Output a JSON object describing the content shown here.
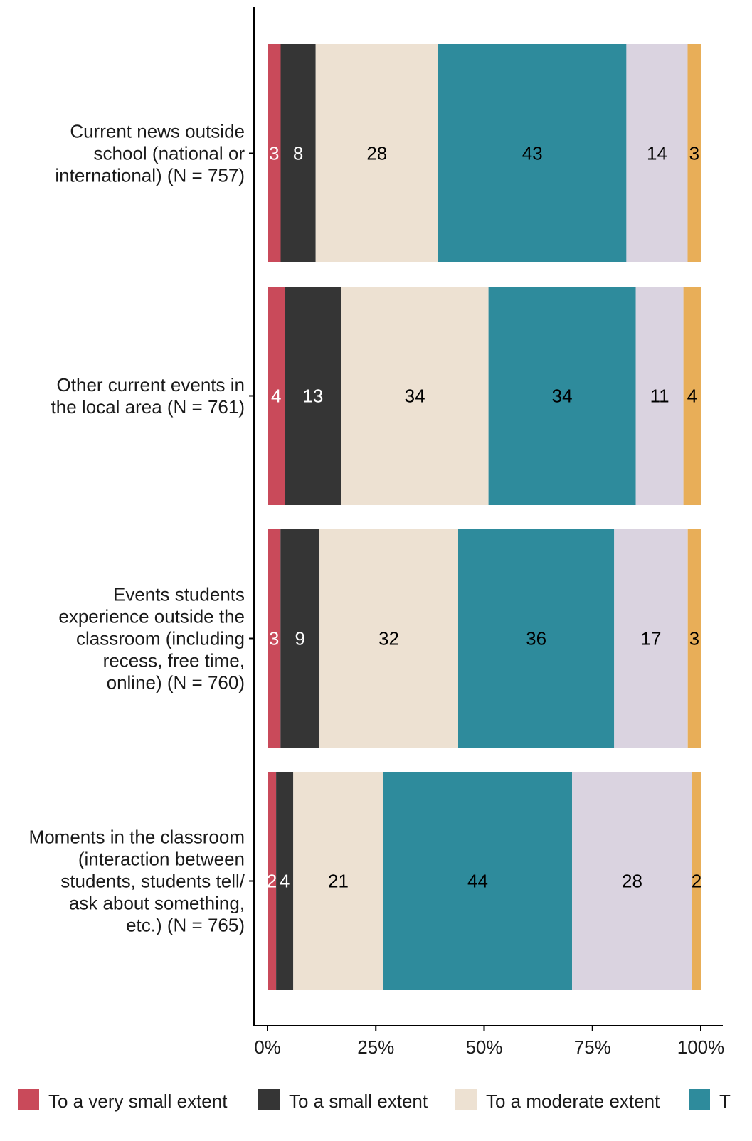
{
  "chart_data": {
    "type": "bar",
    "orientation": "horizontal",
    "stacked": true,
    "categories": [
      "Current news outside school (national or international) (N = 757)",
      "Other current events in the local area (N = 761)",
      "Events students experience outside the classroom (including recess, free time, online) (N = 760)",
      "Moments in the classroom (interaction between students, students tell/ ask about something, etc.) (N = 765)"
    ],
    "category_lines": [
      [
        "Current news outside",
        "school (national or",
        "international) (N = 757)"
      ],
      [
        "Other current events in",
        "the local area (N = 761)"
      ],
      [
        "Events students",
        "experience outside the",
        "classroom (including",
        "recess, free time,",
        "online) (N = 760)"
      ],
      [
        "Moments in the classroom",
        "(interaction between",
        "students, students tell/",
        "ask about something,",
        "etc.) (N = 765)"
      ]
    ],
    "series": [
      {
        "name": "To a very small extent",
        "color": "#C94A5A",
        "label_color": "#ffffff",
        "values": [
          3,
          4,
          3,
          2
        ],
        "labels": [
          "3",
          "4",
          "3",
          "2"
        ]
      },
      {
        "name": "To a small extent",
        "color": "#353535",
        "label_color": "#ffffff",
        "values": [
          8,
          13,
          9,
          4
        ],
        "labels": [
          "8",
          "13",
          "9",
          "4"
        ]
      },
      {
        "name": "To a moderate extent",
        "color": "#EDE1D2",
        "label_color": "#000000",
        "values": [
          28,
          34,
          32,
          21
        ],
        "labels": [
          "28",
          "34",
          "32",
          "21"
        ]
      },
      {
        "name": "T",
        "color": "#2E8B9C",
        "label_color": "#000000",
        "values": [
          43,
          34,
          36,
          44
        ],
        "labels": [
          "43",
          "34",
          "36",
          "44"
        ]
      },
      {
        "name": "",
        "color": "#DAD3E0",
        "label_color": "#000000",
        "values": [
          14,
          11,
          17,
          28
        ],
        "labels": [
          "14",
          "11",
          "17",
          "28"
        ]
      },
      {
        "name": "",
        "color": "#E8AE58",
        "label_color": "#000000",
        "values": [
          3,
          4,
          3,
          2
        ],
        "labels": [
          "3",
          "4",
          "3",
          "2"
        ]
      }
    ],
    "x_ticks": [
      "0%",
      "25%",
      "50%",
      "75%",
      "100%"
    ],
    "xlim": [
      0,
      100
    ],
    "xlabel": "",
    "ylabel": "",
    "title": "",
    "grid": false,
    "legend_position": "bottom"
  }
}
